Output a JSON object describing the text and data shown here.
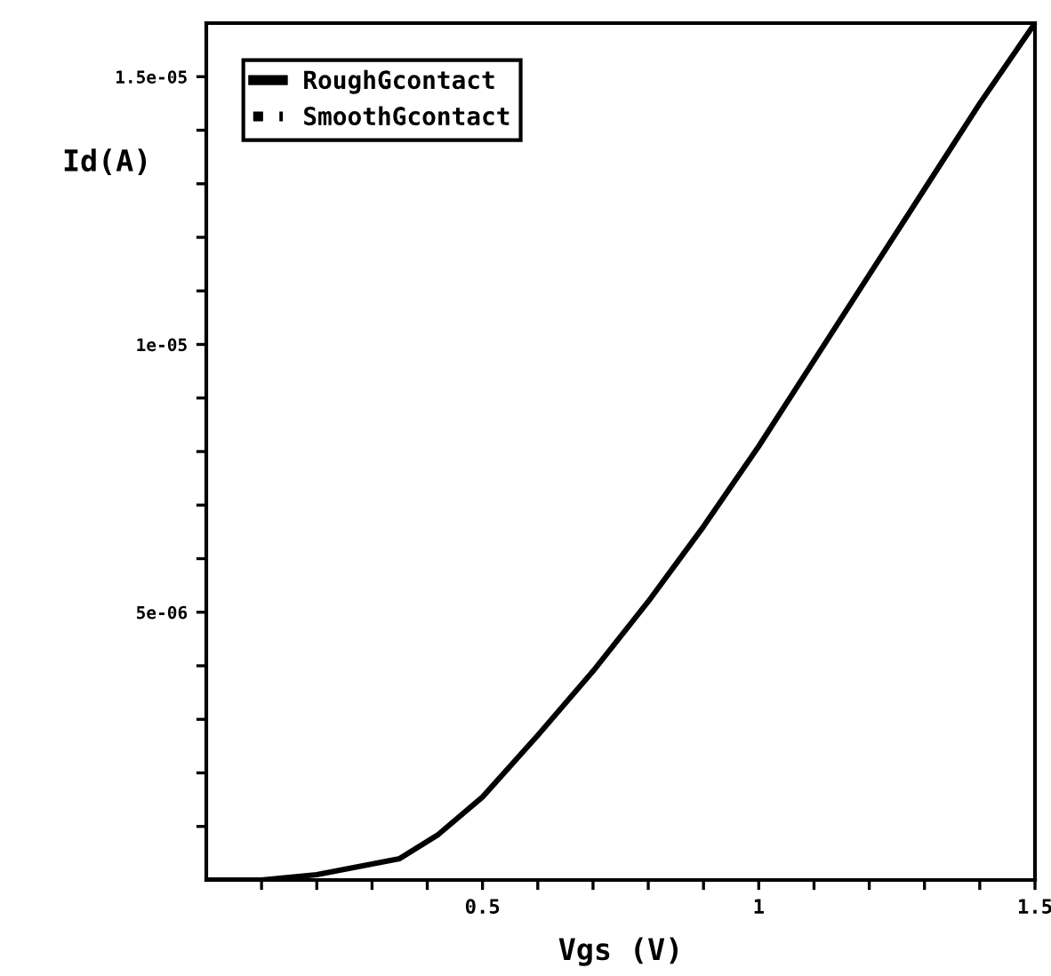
{
  "chart_data": {
    "type": "line",
    "xlabel": "Vgs (V)",
    "ylabel": "Id(A)",
    "x": [
      0,
      0.1,
      0.2,
      0.3,
      0.35,
      0.42,
      0.5,
      0.6,
      0.7,
      0.8,
      0.9,
      1.0,
      1.1,
      1.2,
      1.3,
      1.4,
      1.5
    ],
    "series": [
      {
        "name": "RoughGcontact",
        "color": "#000000",
        "line_style": "solid",
        "values": [
          0,
          0.0,
          1e-07,
          3e-07,
          4e-07,
          8.5e-07,
          1.55e-06,
          2.7e-06,
          3.9e-06,
          5.2e-06,
          6.6e-06,
          8.1e-06,
          9.7e-06,
          1.13e-05,
          1.29e-05,
          1.45e-05,
          1.6e-05
        ]
      },
      {
        "name": "SmoothGcontact",
        "color": "#000000",
        "line_style": "dotted",
        "values": [
          null,
          null,
          null,
          null,
          null,
          null,
          null,
          null,
          null,
          null,
          null,
          null,
          null,
          null,
          null,
          null,
          null
        ]
      }
    ],
    "xlim": [
      0,
      1.5
    ],
    "ylim": [
      0,
      1.6e-05
    ],
    "xticks": [
      {
        "value": 0.1,
        "label": null
      },
      {
        "value": 0.2,
        "label": null
      },
      {
        "value": 0.3,
        "label": null
      },
      {
        "value": 0.4,
        "label": null
      },
      {
        "value": 0.5,
        "label": "0.5"
      },
      {
        "value": 0.6,
        "label": null
      },
      {
        "value": 0.7,
        "label": null
      },
      {
        "value": 0.8,
        "label": null
      },
      {
        "value": 0.9,
        "label": null
      },
      {
        "value": 1,
        "label": "1"
      },
      {
        "value": 1.1,
        "label": null
      },
      {
        "value": 1.2,
        "label": null
      },
      {
        "value": 1.3,
        "label": null
      },
      {
        "value": 1.4,
        "label": null
      },
      {
        "value": 1.5,
        "label": "1.5"
      }
    ],
    "yticks": [
      {
        "value": 1e-06,
        "label": null
      },
      {
        "value": 2e-06,
        "label": null
      },
      {
        "value": 3e-06,
        "label": null
      },
      {
        "value": 4e-06,
        "label": null
      },
      {
        "value": 5e-06,
        "label": "5e-06"
      },
      {
        "value": 6e-06,
        "label": null
      },
      {
        "value": 7e-06,
        "label": null
      },
      {
        "value": 8e-06,
        "label": null
      },
      {
        "value": 9e-06,
        "label": null
      },
      {
        "value": 1e-05,
        "label": "1e-05"
      },
      {
        "value": 1.1e-05,
        "label": null
      },
      {
        "value": 1.2e-05,
        "label": null
      },
      {
        "value": 1.3e-05,
        "label": null
      },
      {
        "value": 1.4e-05,
        "label": null
      },
      {
        "value": 1.5e-05,
        "label": "1.5e-05"
      }
    ],
    "grid": false,
    "legend": "top left"
  }
}
